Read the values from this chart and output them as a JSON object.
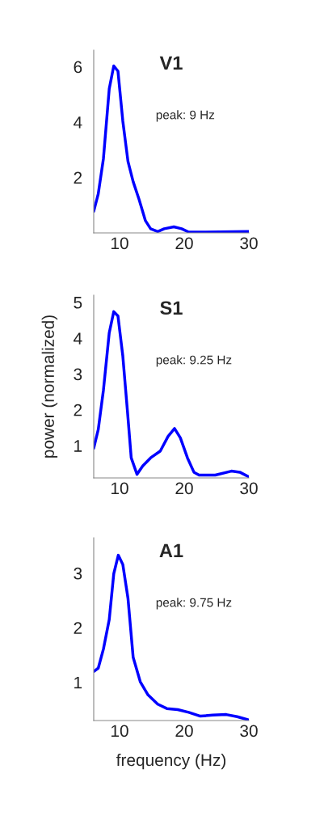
{
  "chart_data": [
    {
      "type": "line",
      "title": "V1",
      "annotations": [
        "peak: 9 Hz"
      ],
      "xlim": [
        6,
        30
      ],
      "ylim": [
        0,
        6.6
      ],
      "xticks": [
        10,
        20,
        30
      ],
      "yticks": [
        2,
        4,
        6
      ],
      "grid": false,
      "legend": false,
      "series": [
        {
          "color": "#0000ff",
          "x": [
            6,
            6.7,
            7.5,
            8.4,
            9.1,
            9.75,
            10.5,
            11.3,
            12.1,
            13,
            14,
            14.8,
            15.9,
            16.9,
            18.4,
            19.6,
            20.7,
            22.3,
            30
          ],
          "values": [
            0.78,
            1.41,
            2.68,
            5.2,
            6.03,
            5.84,
            4.04,
            2.58,
            1.85,
            1.22,
            0.44,
            0.15,
            0.05,
            0.15,
            0.22,
            0.15,
            0.03,
            0.03,
            0.05
          ]
        }
      ]
    },
    {
      "type": "line",
      "title": "S1",
      "ylabel": "power (normalized)",
      "annotations": [
        "peak: 9.25 Hz"
      ],
      "xlim": [
        6,
        30
      ],
      "ylim": [
        0.1,
        5.2
      ],
      "xticks": [
        10,
        20,
        30
      ],
      "yticks": [
        1,
        2,
        3,
        4,
        5
      ],
      "grid": false,
      "legend": false,
      "series": [
        {
          "color": "#0000ff",
          "x": [
            6,
            6.7,
            7.5,
            8.4,
            9.1,
            9.75,
            10.5,
            11.2,
            11.8,
            12.7,
            13.6,
            14.8,
            16.3,
            17.5,
            18.5,
            19.4,
            20.5,
            21.5,
            22.3,
            24.8,
            27.3,
            28.6,
            30
          ],
          "values": [
            0.93,
            1.45,
            2.55,
            4.15,
            4.74,
            4.62,
            3.5,
            2.0,
            0.66,
            0.2,
            0.44,
            0.66,
            0.85,
            1.26,
            1.48,
            1.22,
            0.66,
            0.26,
            0.18,
            0.18,
            0.29,
            0.26,
            0.13
          ]
        }
      ]
    },
    {
      "type": "line",
      "title": "A1",
      "xlabel": "frequency (Hz)",
      "annotations": [
        "peak: 9.75 Hz"
      ],
      "xlim": [
        6,
        30
      ],
      "ylim": [
        0.3,
        3.65
      ],
      "xticks": [
        10,
        20,
        30
      ],
      "yticks": [
        1,
        2,
        3
      ],
      "grid": false,
      "legend": false,
      "series": [
        {
          "color": "#0000ff",
          "x": [
            6,
            6.7,
            7.5,
            8.4,
            9.1,
            9.8,
            10.5,
            11.3,
            12.1,
            13.2,
            14.4,
            15.9,
            17.3,
            19,
            20.7,
            22.5,
            24.4,
            26.5,
            28.2,
            30
          ],
          "values": [
            1.2,
            1.26,
            1.61,
            2.15,
            2.99,
            3.33,
            3.16,
            2.54,
            1.46,
            1.01,
            0.77,
            0.6,
            0.52,
            0.5,
            0.45,
            0.38,
            0.4,
            0.41,
            0.37,
            0.31
          ]
        }
      ]
    }
  ]
}
